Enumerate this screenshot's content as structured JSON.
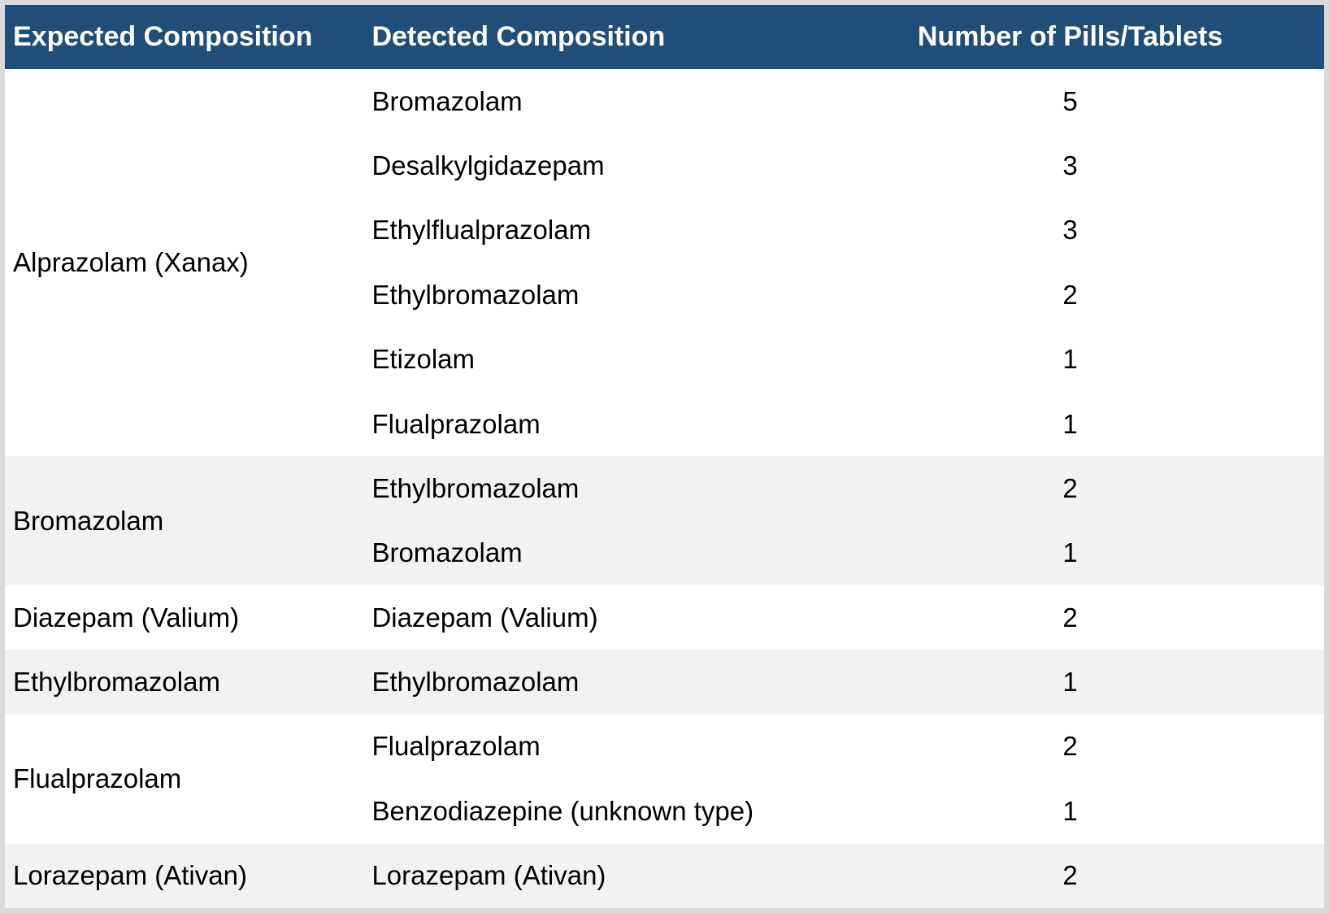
{
  "table": {
    "columns": [
      {
        "label": "Expected Composition",
        "align": "left"
      },
      {
        "label": "Detected Composition",
        "align": "left"
      },
      {
        "label": "Number of Pills/Tablets",
        "align": "center"
      }
    ],
    "groups": [
      {
        "expected": "Alprazolam (Xanax)",
        "rows": [
          {
            "detected": "Bromazolam",
            "count": "5"
          },
          {
            "detected": "Desalkylgidazepam",
            "count": "3"
          },
          {
            "detected": "Ethylflualprazolam",
            "count": "3"
          },
          {
            "detected": "Ethylbromazolam",
            "count": "2"
          },
          {
            "detected": "Etizolam",
            "count": "1"
          },
          {
            "detected": "Flualprazolam",
            "count": "1"
          }
        ]
      },
      {
        "expected": "Bromazolam",
        "rows": [
          {
            "detected": "Ethylbromazolam",
            "count": "2"
          },
          {
            "detected": "Bromazolam",
            "count": "1"
          }
        ]
      },
      {
        "expected": "Diazepam (Valium)",
        "rows": [
          {
            "detected": "Diazepam (Valium)",
            "count": "2"
          }
        ]
      },
      {
        "expected": "Ethylbromazolam",
        "rows": [
          {
            "detected": "Ethylbromazolam",
            "count": "1"
          }
        ]
      },
      {
        "expected": "Flualprazolam",
        "rows": [
          {
            "detected": "Flualprazolam",
            "count": "2"
          },
          {
            "detected": "Benzodiazepine (unknown type)",
            "count": "1"
          }
        ]
      },
      {
        "expected": "Lorazepam (Ativan)",
        "rows": [
          {
            "detected": "Lorazepam (Ativan)",
            "count": "2"
          }
        ]
      }
    ],
    "colors": {
      "header_bg": "#1F4E79",
      "header_text": "#FFFFFF",
      "band_bg": "#FFFFFF",
      "band_alt_bg": "#F2F2F2",
      "border": "#D9D9D9",
      "text": "#000000"
    }
  },
  "chart_data": {
    "type": "table",
    "title": "",
    "columns": [
      "Expected Composition",
      "Detected Composition",
      "Number of Pills/Tablets"
    ],
    "rows": [
      [
        "Alprazolam (Xanax)",
        "Bromazolam",
        5
      ],
      [
        "Alprazolam (Xanax)",
        "Desalkylgidazepam",
        3
      ],
      [
        "Alprazolam (Xanax)",
        "Ethylflualprazolam",
        3
      ],
      [
        "Alprazolam (Xanax)",
        "Ethylbromazolam",
        2
      ],
      [
        "Alprazolam (Xanax)",
        "Etizolam",
        1
      ],
      [
        "Alprazolam (Xanax)",
        "Flualprazolam",
        1
      ],
      [
        "Bromazolam",
        "Ethylbromazolam",
        2
      ],
      [
        "Bromazolam",
        "Bromazolam",
        1
      ],
      [
        "Diazepam (Valium)",
        "Diazepam (Valium)",
        2
      ],
      [
        "Ethylbromazolam",
        "Ethylbromazolam",
        1
      ],
      [
        "Flualprazolam",
        "Flualprazolam",
        2
      ],
      [
        "Flualprazolam",
        "Benzodiazepine (unknown type)",
        1
      ],
      [
        "Lorazepam (Ativan)",
        "Lorazepam (Ativan)",
        2
      ]
    ],
    "layout": {
      "merged_first_column_by_group": true,
      "group_banding": [
        "#FFFFFF",
        "#F2F2F2"
      ],
      "gridlines": false
    }
  }
}
